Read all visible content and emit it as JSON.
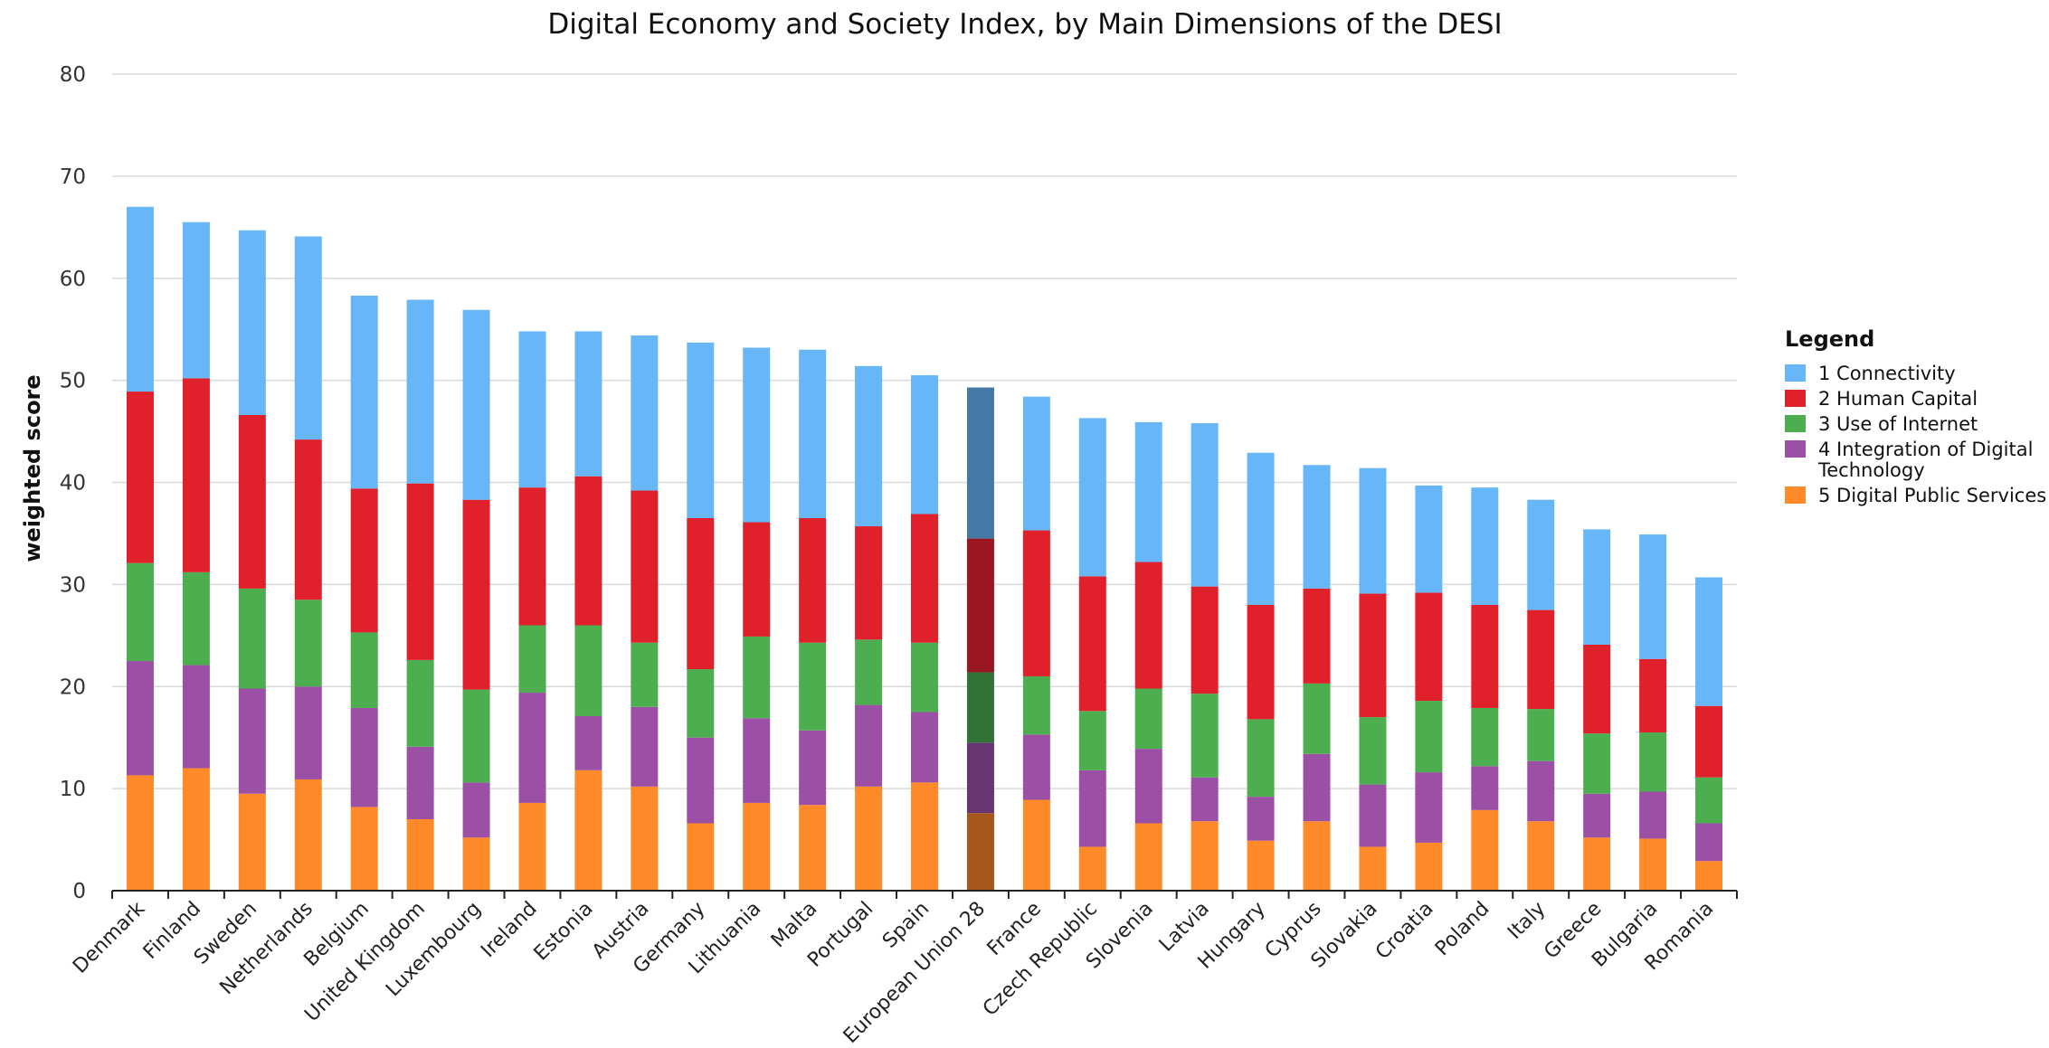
{
  "chart_data": {
    "type": "bar",
    "stacked": true,
    "title": "Digital Economy and Society Index, by Main Dimensions of the DESI",
    "xlabel": "",
    "ylabel": "weighted score",
    "ylim": [
      0,
      80
    ],
    "yticks": [
      0,
      10,
      20,
      30,
      40,
      50,
      60,
      70,
      80
    ],
    "grid": true,
    "legend_title": "Legend",
    "legend_position": "right",
    "highlight_category": "European Union 28",
    "categories": [
      "Denmark",
      "Finland",
      "Sweden",
      "Netherlands",
      "Belgium",
      "United Kingdom",
      "Luxembourg",
      "Ireland",
      "Estonia",
      "Austria",
      "Germany",
      "Lithuania",
      "Malta",
      "Portugal",
      "Spain",
      "European Union 28",
      "France",
      "Czech Republic",
      "Slovenia",
      "Latvia",
      "Hungary",
      "Cyprus",
      "Slovakia",
      "Croatia",
      "Poland",
      "Italy",
      "Greece",
      "Bulgaria",
      "Romania"
    ],
    "series": [
      {
        "name": "5 Digital Public Services",
        "color": "#ff8a2a",
        "highlight_color": "#a8571c",
        "values": [
          11.3,
          12.0,
          9.5,
          10.9,
          8.2,
          7.0,
          5.2,
          8.6,
          11.8,
          10.2,
          6.6,
          8.6,
          8.4,
          10.2,
          10.6,
          7.6,
          8.9,
          4.3,
          6.6,
          6.8,
          4.9,
          6.8,
          4.3,
          4.7,
          7.9,
          6.8,
          5.2,
          5.1,
          2.9
        ]
      },
      {
        "name": "4 Integration of Digital Technology",
        "color": "#9b50a6",
        "highlight_color": "#673671",
        "values": [
          11.2,
          10.1,
          10.3,
          9.1,
          9.7,
          7.1,
          5.4,
          10.8,
          5.3,
          7.8,
          8.4,
          8.3,
          7.3,
          8.0,
          6.9,
          6.9,
          6.4,
          7.5,
          7.3,
          4.3,
          4.3,
          6.6,
          6.1,
          6.9,
          4.3,
          5.9,
          4.3,
          4.6,
          3.7
        ]
      },
      {
        "name": "3 Use of Internet",
        "color": "#4cae4f",
        "highlight_color": "#317337",
        "values": [
          9.6,
          9.1,
          9.8,
          8.5,
          7.4,
          8.5,
          9.1,
          6.6,
          8.9,
          6.3,
          6.7,
          8.0,
          8.6,
          6.4,
          6.8,
          6.9,
          5.7,
          5.8,
          5.9,
          8.2,
          7.6,
          6.9,
          6.6,
          7.0,
          5.7,
          5.1,
          5.9,
          5.8,
          4.5
        ]
      },
      {
        "name": "2 Human Capital",
        "color": "#e0202b",
        "highlight_color": "#9a1620",
        "values": [
          16.8,
          19.0,
          17.0,
          15.7,
          14.1,
          17.3,
          18.6,
          13.5,
          14.6,
          14.9,
          14.8,
          11.2,
          12.2,
          11.1,
          12.6,
          13.1,
          14.3,
          13.2,
          12.4,
          10.5,
          11.2,
          9.3,
          12.1,
          10.6,
          10.1,
          9.7,
          8.7,
          7.2,
          7.0
        ]
      },
      {
        "name": "1 Connectivity",
        "color": "#67b6f8",
        "highlight_color": "#4479a6",
        "values": [
          18.1,
          15.3,
          18.1,
          19.9,
          18.9,
          18.0,
          18.6,
          15.3,
          14.2,
          15.2,
          17.2,
          17.1,
          16.5,
          15.7,
          13.6,
          14.8,
          13.1,
          15.5,
          13.7,
          16.0,
          14.9,
          12.1,
          12.3,
          10.5,
          11.5,
          10.8,
          11.3,
          12.2,
          12.6
        ]
      }
    ]
  }
}
